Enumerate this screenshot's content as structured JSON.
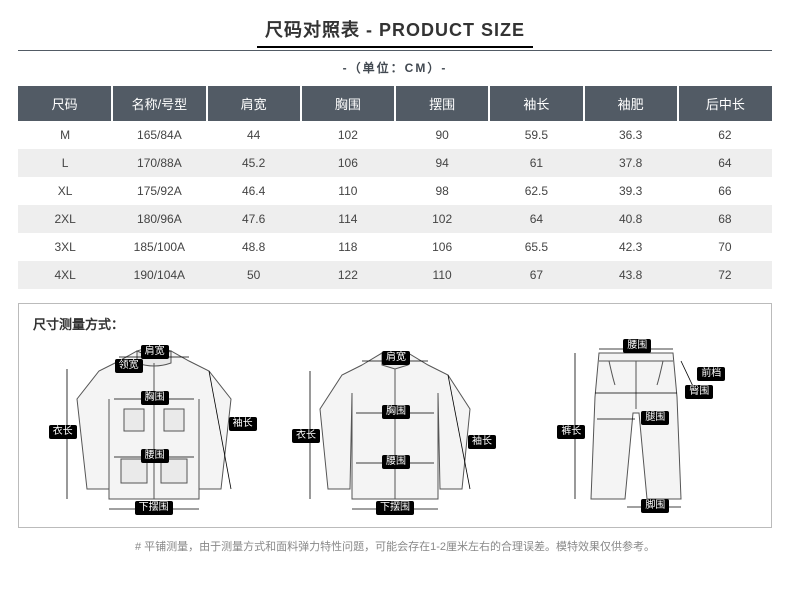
{
  "title_cn": "尺码对照表",
  "title_en": "PRODUCT SIZE",
  "unit_text": "-（单位：CM）-",
  "table": {
    "headers": [
      "尺码",
      "名称/号型",
      "肩宽",
      "胸围",
      "摆围",
      "袖长",
      "袖肥",
      "后中长"
    ],
    "rows": [
      [
        "M",
        "165/84A",
        "44",
        "102",
        "90",
        "59.5",
        "36.3",
        "62"
      ],
      [
        "L",
        "170/88A",
        "45.2",
        "106",
        "94",
        "61",
        "37.8",
        "64"
      ],
      [
        "XL",
        "175/92A",
        "46.4",
        "110",
        "98",
        "62.5",
        "39.3",
        "66"
      ],
      [
        "2XL",
        "180/96A",
        "47.6",
        "114",
        "102",
        "64",
        "40.8",
        "68"
      ],
      [
        "3XL",
        "185/100A",
        "48.8",
        "118",
        "106",
        "65.5",
        "42.3",
        "70"
      ],
      [
        "4XL",
        "190/104A",
        "50",
        "122",
        "110",
        "67",
        "43.8",
        "72"
      ]
    ],
    "header_bg": "#525b65",
    "header_color": "#ffffff",
    "row_even_bg": "#eeeeee",
    "row_odd_bg": "#ffffff"
  },
  "diagram_title": "尺寸测量方式：",
  "diagrams": {
    "jacket": {
      "labels": {
        "shoulder": "肩宽",
        "collar": "领宽",
        "chest": "胸围",
        "body_len": "衣长",
        "sleeve": "袖长",
        "waist": "腰围",
        "hem": "下摆围"
      }
    },
    "shirt": {
      "labels": {
        "shoulder": "肩宽",
        "chest": "胸围",
        "body_len": "衣长",
        "sleeve": "袖长",
        "waist": "腰围",
        "hem": "下摆围"
      }
    },
    "pants": {
      "labels": {
        "waist": "腰围",
        "front_rise": "前档",
        "hip": "臀围",
        "thigh": "腿围",
        "length": "裤长",
        "leg_open": "脚围"
      }
    }
  },
  "footnote": "# 平铺测量，由于测量方式和面料弹力特性问题，可能会存在1-2厘米左右的合理误差。模特效果仅供参考。"
}
